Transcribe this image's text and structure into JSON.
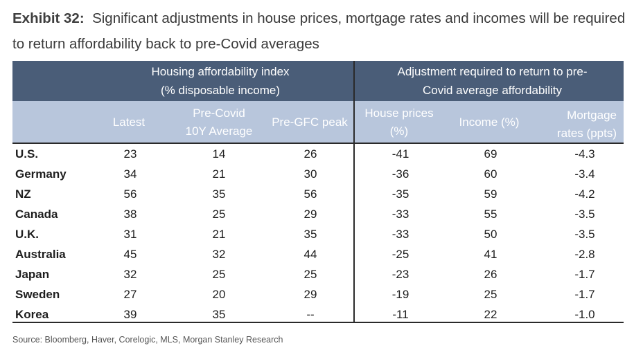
{
  "header": {
    "exhibit_label": "Exhibit 32:",
    "title": "Significant adjustments in house prices, mortgage rates and incomes will be required to return affordability back to pre-Covid averages"
  },
  "table": {
    "group_headers": [
      {
        "lines": [
          "Housing affordability index",
          "(% disposable income)"
        ]
      },
      {
        "lines": [
          "Adjustment required to return to pre-",
          "Covid average affordability"
        ]
      }
    ],
    "columns": [
      {
        "lines": [
          "Latest"
        ]
      },
      {
        "lines": [
          "Pre-Covid",
          "10Y Average"
        ]
      },
      {
        "lines": [
          "Pre-GFC peak"
        ]
      },
      {
        "lines": [
          "House prices",
          "(%)"
        ]
      },
      {
        "lines": [
          "Income (%)"
        ]
      },
      {
        "lines": [
          "Mortgage",
          "rates (ppts)"
        ]
      }
    ],
    "rows": [
      {
        "country": "U.S.",
        "values": [
          "23",
          "14",
          "26",
          "-41",
          "69",
          "-4.3"
        ]
      },
      {
        "country": "Germany",
        "values": [
          "34",
          "21",
          "30",
          "-36",
          "60",
          "-3.4"
        ]
      },
      {
        "country": "NZ",
        "values": [
          "56",
          "35",
          "56",
          "-35",
          "59",
          "-4.2"
        ]
      },
      {
        "country": "Canada",
        "values": [
          "38",
          "25",
          "29",
          "-33",
          "55",
          "-3.5"
        ]
      },
      {
        "country": "U.K.",
        "values": [
          "31",
          "21",
          "35",
          "-33",
          "50",
          "-3.5"
        ]
      },
      {
        "country": "Australia",
        "values": [
          "45",
          "32",
          "44",
          "-25",
          "41",
          "-2.8"
        ]
      },
      {
        "country": "Japan",
        "values": [
          "32",
          "25",
          "25",
          "-23",
          "26",
          "-1.7"
        ]
      },
      {
        "country": "Sweden",
        "values": [
          "27",
          "20",
          "29",
          "-19",
          "25",
          "-1.7"
        ]
      },
      {
        "country": "Korea",
        "values": [
          "39",
          "35",
          "--",
          "-11",
          "22",
          "-1.0"
        ]
      }
    ]
  },
  "source": "Source: Bloomberg, Haver, Corelogic, MLS, Morgan Stanley Research",
  "colors": {
    "group_header_bg": "#4a5d78",
    "column_header_bg": "#b8c6dc",
    "rule": "#2a2a2a"
  }
}
